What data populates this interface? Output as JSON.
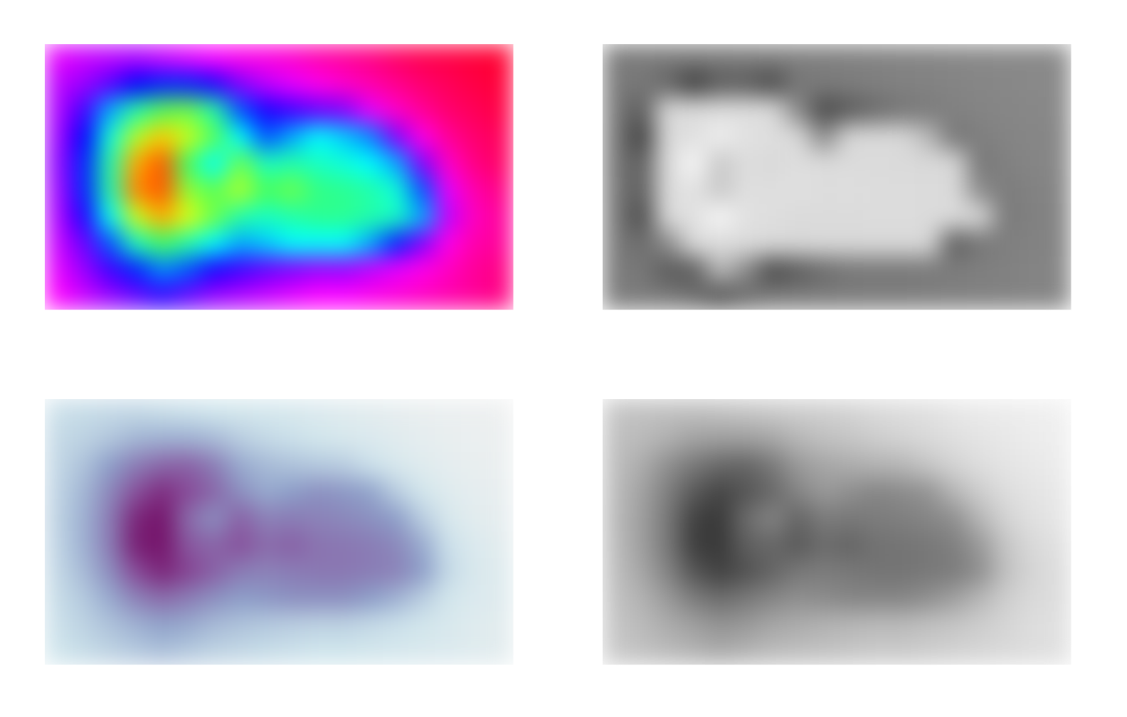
{
  "chart_data": [
    {
      "type": "heatmap",
      "vlim": [
        0,
        1
      ],
      "colormap": {
        "positions": [
          0,
          0.2,
          0.4,
          0.55,
          0.68,
          0.85,
          1
        ],
        "colors": [
          "#ff0030",
          "#ff00ff",
          "#0000ff",
          "#00ffff",
          "#40ff60",
          "#ffff00",
          "#ff0000"
        ]
      },
      "values": [
        [
          0.22,
          0.24,
          0.25,
          0.26,
          0.24,
          0.22,
          0.2,
          0.18,
          0.17,
          0.15,
          0.12,
          0.1,
          0.08,
          0.05,
          0.03,
          0.02,
          0.01,
          0.0
        ],
        [
          0.25,
          0.28,
          0.33,
          0.4,
          0.42,
          0.42,
          0.38,
          0.3,
          0.25,
          0.22,
          0.18,
          0.15,
          0.12,
          0.09,
          0.06,
          0.04,
          0.02,
          0.01
        ],
        [
          0.26,
          0.35,
          0.5,
          0.62,
          0.7,
          0.72,
          0.62,
          0.45,
          0.38,
          0.35,
          0.32,
          0.3,
          0.22,
          0.15,
          0.1,
          0.06,
          0.04,
          0.02
        ],
        [
          0.27,
          0.4,
          0.58,
          0.78,
          0.88,
          0.8,
          0.7,
          0.55,
          0.45,
          0.5,
          0.55,
          0.52,
          0.48,
          0.3,
          0.18,
          0.1,
          0.06,
          0.04
        ],
        [
          0.28,
          0.42,
          0.62,
          0.9,
          0.95,
          0.68,
          0.55,
          0.72,
          0.6,
          0.62,
          0.6,
          0.58,
          0.55,
          0.5,
          0.3,
          0.15,
          0.08,
          0.05
        ],
        [
          0.27,
          0.42,
          0.62,
          0.92,
          0.95,
          0.75,
          0.7,
          0.78,
          0.68,
          0.72,
          0.65,
          0.64,
          0.62,
          0.58,
          0.45,
          0.22,
          0.12,
          0.08
        ],
        [
          0.26,
          0.38,
          0.56,
          0.8,
          0.9,
          0.82,
          0.72,
          0.62,
          0.6,
          0.62,
          0.64,
          0.64,
          0.62,
          0.6,
          0.5,
          0.25,
          0.14,
          0.1
        ],
        [
          0.24,
          0.32,
          0.45,
          0.6,
          0.68,
          0.62,
          0.55,
          0.5,
          0.52,
          0.55,
          0.55,
          0.55,
          0.5,
          0.42,
          0.3,
          0.18,
          0.12,
          0.1
        ],
        [
          0.22,
          0.28,
          0.35,
          0.42,
          0.48,
          0.45,
          0.38,
          0.35,
          0.32,
          0.3,
          0.28,
          0.28,
          0.25,
          0.22,
          0.18,
          0.14,
          0.1,
          0.08
        ],
        [
          0.2,
          0.24,
          0.28,
          0.32,
          0.36,
          0.32,
          0.28,
          0.26,
          0.24,
          0.22,
          0.2,
          0.2,
          0.18,
          0.16,
          0.14,
          0.12,
          0.1,
          0.08
        ]
      ]
    },
    {
      "type": "heatmap",
      "vlim": [
        0,
        1
      ],
      "colormap": {
        "positions": [
          0,
          0.3,
          0.4,
          0.5,
          0.85,
          0.9,
          1
        ],
        "colors": [
          "#8a8a8a",
          "#777777",
          "#404040",
          "#d8d8d8",
          "#e2e2e2",
          "#f6f6f6",
          "#999999"
        ]
      },
      "values": [
        [
          0.22,
          0.24,
          0.25,
          0.26,
          0.24,
          0.22,
          0.2,
          0.18,
          0.17,
          0.15,
          0.12,
          0.1,
          0.08,
          0.05,
          0.03,
          0.02,
          0.01,
          0.0
        ],
        [
          0.25,
          0.28,
          0.33,
          0.4,
          0.42,
          0.42,
          0.38,
          0.3,
          0.25,
          0.22,
          0.18,
          0.15,
          0.12,
          0.09,
          0.06,
          0.04,
          0.02,
          0.01
        ],
        [
          0.26,
          0.35,
          0.5,
          0.62,
          0.7,
          0.72,
          0.62,
          0.45,
          0.38,
          0.35,
          0.32,
          0.3,
          0.22,
          0.15,
          0.1,
          0.06,
          0.04,
          0.02
        ],
        [
          0.27,
          0.4,
          0.58,
          0.78,
          0.88,
          0.8,
          0.7,
          0.55,
          0.45,
          0.5,
          0.55,
          0.52,
          0.48,
          0.3,
          0.18,
          0.1,
          0.06,
          0.04
        ],
        [
          0.28,
          0.42,
          0.62,
          0.9,
          0.95,
          0.68,
          0.55,
          0.72,
          0.6,
          0.62,
          0.6,
          0.58,
          0.55,
          0.5,
          0.3,
          0.15,
          0.08,
          0.05
        ],
        [
          0.27,
          0.42,
          0.62,
          0.92,
          0.95,
          0.75,
          0.7,
          0.78,
          0.68,
          0.72,
          0.65,
          0.64,
          0.62,
          0.58,
          0.45,
          0.22,
          0.12,
          0.08
        ],
        [
          0.26,
          0.38,
          0.56,
          0.8,
          0.9,
          0.82,
          0.72,
          0.62,
          0.6,
          0.62,
          0.64,
          0.64,
          0.62,
          0.6,
          0.5,
          0.25,
          0.14,
          0.1
        ],
        [
          0.24,
          0.32,
          0.45,
          0.6,
          0.68,
          0.62,
          0.55,
          0.5,
          0.52,
          0.55,
          0.55,
          0.55,
          0.5,
          0.42,
          0.3,
          0.18,
          0.12,
          0.1
        ],
        [
          0.22,
          0.28,
          0.35,
          0.42,
          0.48,
          0.45,
          0.38,
          0.35,
          0.32,
          0.3,
          0.28,
          0.28,
          0.25,
          0.22,
          0.18,
          0.14,
          0.1,
          0.08
        ],
        [
          0.2,
          0.24,
          0.28,
          0.32,
          0.36,
          0.32,
          0.28,
          0.26,
          0.24,
          0.22,
          0.2,
          0.2,
          0.18,
          0.16,
          0.14,
          0.12,
          0.1,
          0.08
        ]
      ]
    },
    {
      "type": "heatmap",
      "vlim": [
        0,
        1
      ],
      "colormap": {
        "positions": [
          0,
          0.2,
          0.5,
          0.8,
          1
        ],
        "colors": [
          "#eef0f0",
          "#cfe5ec",
          "#8c9ec8",
          "#884a98",
          "#6e005a"
        ]
      },
      "values": [
        [
          0.22,
          0.24,
          0.25,
          0.26,
          0.24,
          0.22,
          0.2,
          0.18,
          0.17,
          0.15,
          0.12,
          0.1,
          0.08,
          0.05,
          0.03,
          0.02,
          0.01,
          0.0
        ],
        [
          0.25,
          0.28,
          0.33,
          0.4,
          0.42,
          0.42,
          0.38,
          0.3,
          0.25,
          0.22,
          0.18,
          0.15,
          0.12,
          0.09,
          0.06,
          0.04,
          0.02,
          0.01
        ],
        [
          0.26,
          0.35,
          0.5,
          0.62,
          0.7,
          0.72,
          0.62,
          0.45,
          0.38,
          0.35,
          0.32,
          0.3,
          0.22,
          0.15,
          0.1,
          0.06,
          0.04,
          0.02
        ],
        [
          0.27,
          0.4,
          0.58,
          0.78,
          0.88,
          0.8,
          0.7,
          0.55,
          0.45,
          0.5,
          0.55,
          0.52,
          0.48,
          0.3,
          0.18,
          0.1,
          0.06,
          0.04
        ],
        [
          0.28,
          0.42,
          0.62,
          0.9,
          0.95,
          0.68,
          0.55,
          0.72,
          0.6,
          0.62,
          0.6,
          0.58,
          0.55,
          0.5,
          0.3,
          0.15,
          0.08,
          0.05
        ],
        [
          0.27,
          0.42,
          0.62,
          0.92,
          0.95,
          0.75,
          0.7,
          0.78,
          0.68,
          0.72,
          0.65,
          0.64,
          0.62,
          0.58,
          0.45,
          0.22,
          0.12,
          0.08
        ],
        [
          0.26,
          0.38,
          0.56,
          0.8,
          0.9,
          0.82,
          0.72,
          0.62,
          0.6,
          0.62,
          0.64,
          0.64,
          0.62,
          0.6,
          0.5,
          0.25,
          0.14,
          0.1
        ],
        [
          0.24,
          0.32,
          0.45,
          0.6,
          0.68,
          0.62,
          0.55,
          0.5,
          0.52,
          0.55,
          0.55,
          0.55,
          0.5,
          0.42,
          0.3,
          0.18,
          0.12,
          0.1
        ],
        [
          0.22,
          0.28,
          0.35,
          0.42,
          0.48,
          0.45,
          0.38,
          0.35,
          0.32,
          0.3,
          0.28,
          0.28,
          0.25,
          0.22,
          0.18,
          0.14,
          0.1,
          0.08
        ],
        [
          0.2,
          0.24,
          0.28,
          0.32,
          0.36,
          0.32,
          0.28,
          0.26,
          0.24,
          0.22,
          0.2,
          0.2,
          0.18,
          0.16,
          0.14,
          0.12,
          0.1,
          0.08
        ]
      ]
    },
    {
      "type": "heatmap",
      "vlim": [
        0,
        1
      ],
      "colormap": {
        "positions": [
          0,
          1
        ],
        "colors": [
          "#f0f0f0",
          "#2e2e2e"
        ]
      },
      "values": [
        [
          0.22,
          0.24,
          0.25,
          0.26,
          0.24,
          0.22,
          0.2,
          0.18,
          0.17,
          0.15,
          0.12,
          0.1,
          0.08,
          0.05,
          0.03,
          0.02,
          0.01,
          0.0
        ],
        [
          0.25,
          0.28,
          0.33,
          0.4,
          0.42,
          0.42,
          0.38,
          0.3,
          0.25,
          0.22,
          0.18,
          0.15,
          0.12,
          0.09,
          0.06,
          0.04,
          0.02,
          0.01
        ],
        [
          0.26,
          0.35,
          0.5,
          0.62,
          0.7,
          0.72,
          0.62,
          0.45,
          0.38,
          0.35,
          0.32,
          0.3,
          0.22,
          0.15,
          0.1,
          0.06,
          0.04,
          0.02
        ],
        [
          0.27,
          0.4,
          0.58,
          0.78,
          0.88,
          0.8,
          0.7,
          0.55,
          0.45,
          0.5,
          0.55,
          0.52,
          0.48,
          0.3,
          0.18,
          0.1,
          0.06,
          0.04
        ],
        [
          0.28,
          0.42,
          0.62,
          0.9,
          0.95,
          0.68,
          0.55,
          0.72,
          0.6,
          0.62,
          0.6,
          0.58,
          0.55,
          0.5,
          0.3,
          0.15,
          0.08,
          0.05
        ],
        [
          0.27,
          0.42,
          0.62,
          0.92,
          0.95,
          0.75,
          0.7,
          0.78,
          0.68,
          0.72,
          0.65,
          0.64,
          0.62,
          0.58,
          0.45,
          0.22,
          0.12,
          0.08
        ],
        [
          0.26,
          0.38,
          0.56,
          0.8,
          0.9,
          0.82,
          0.72,
          0.62,
          0.6,
          0.62,
          0.64,
          0.64,
          0.62,
          0.6,
          0.5,
          0.25,
          0.14,
          0.1
        ],
        [
          0.24,
          0.32,
          0.45,
          0.6,
          0.68,
          0.62,
          0.55,
          0.5,
          0.52,
          0.55,
          0.55,
          0.55,
          0.5,
          0.42,
          0.3,
          0.18,
          0.12,
          0.1
        ],
        [
          0.22,
          0.28,
          0.35,
          0.42,
          0.48,
          0.45,
          0.38,
          0.35,
          0.32,
          0.3,
          0.28,
          0.28,
          0.25,
          0.22,
          0.18,
          0.14,
          0.1,
          0.08
        ],
        [
          0.2,
          0.24,
          0.28,
          0.32,
          0.36,
          0.32,
          0.28,
          0.26,
          0.24,
          0.22,
          0.2,
          0.2,
          0.18,
          0.16,
          0.14,
          0.12,
          0.1,
          0.08
        ]
      ]
    }
  ]
}
